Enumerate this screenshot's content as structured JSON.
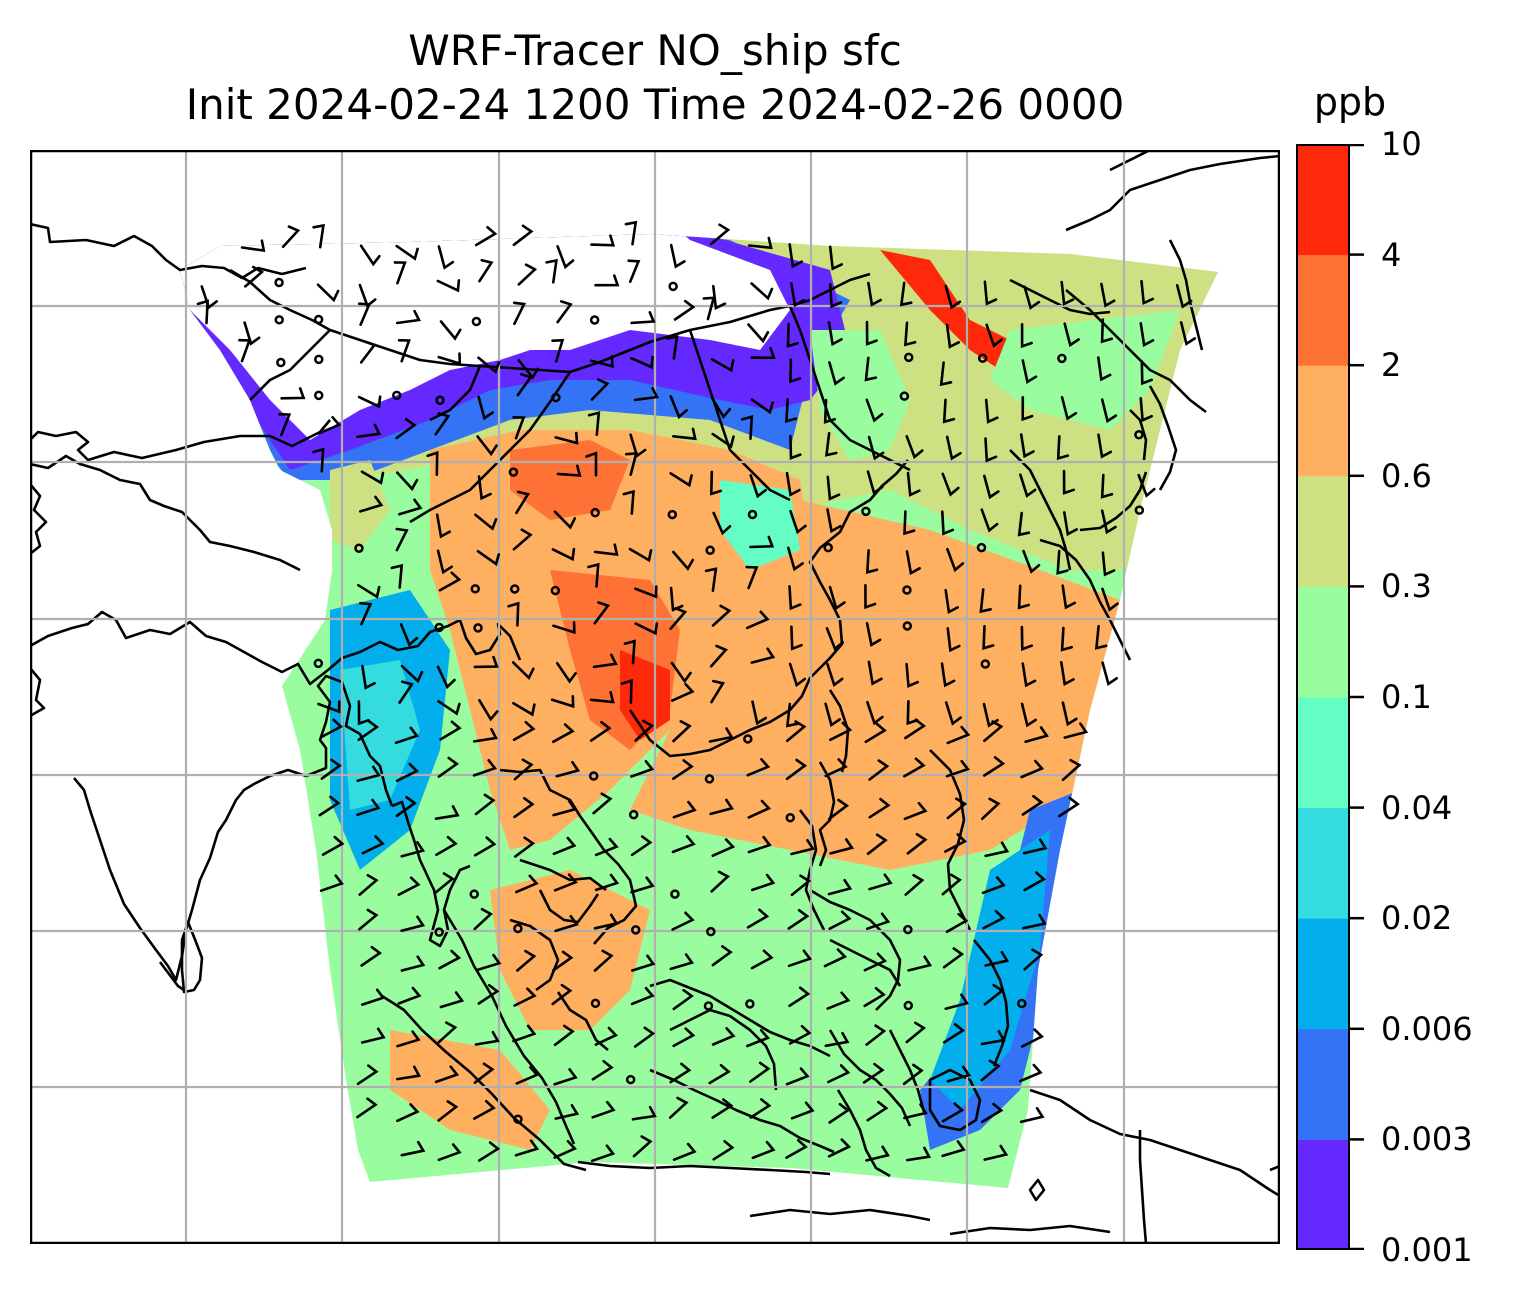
{
  "title": {
    "line1": "WRF-Tracer NO_ship sfc",
    "line2": "Init 2024-02-24 1200 Time 2024-02-26 0000"
  },
  "colorbar": {
    "unit": "ppb",
    "levels": [
      "0.001",
      "0.003",
      "0.006",
      "0.02",
      "0.04",
      "0.1",
      "0.3",
      "0.6",
      "2",
      "4",
      "10"
    ],
    "colors": [
      "#6429fe",
      "#3473f6",
      "#03aeec",
      "#34dbdf",
      "#64fdc3",
      "#99fda0",
      "#cde182",
      "#feaf5f",
      "#fe7335",
      "#fe290b"
    ]
  },
  "map": {
    "projection": "lambert-conformal",
    "domain": "East Asia / Western Pacific",
    "gridlines": true,
    "coastlines": true,
    "wind_barbs": true
  }
}
